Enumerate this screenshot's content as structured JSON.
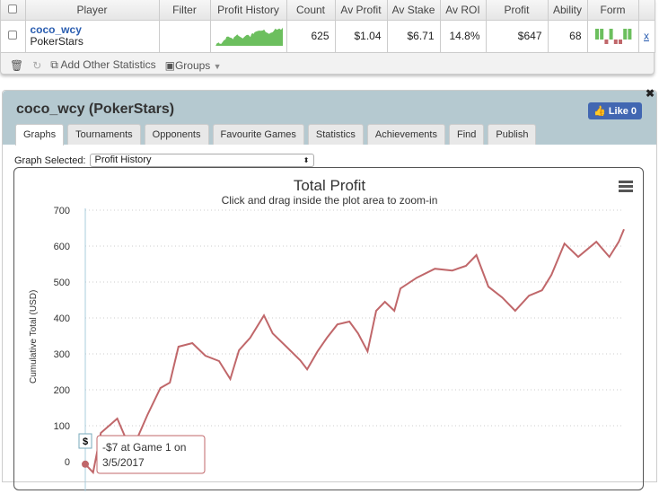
{
  "table": {
    "headers": [
      "Player",
      "Filter",
      "Profit History",
      "Count",
      "Av Profit",
      "Av Stake",
      "Av ROI",
      "Profit",
      "Ability",
      "Form"
    ],
    "row": {
      "player": "coco_wcy",
      "site": "PokerStars",
      "filter": "",
      "count": "625",
      "av_profit": "$1.04",
      "av_stake": "$6.71",
      "av_roi": "14.8%",
      "profit": "$647",
      "ability": "68",
      "remove": "x",
      "form": [
        "win",
        "win",
        "loss",
        "win",
        "loss",
        "loss",
        "win",
        "win"
      ]
    }
  },
  "toolbar": {
    "add_stats": "Add Other Statistics",
    "groups": "Groups"
  },
  "panel": {
    "title": "coco_wcy (PokerStars)",
    "like": "Like 0",
    "close": "✖",
    "tabs": [
      "Graphs",
      "Tournaments",
      "Opponents",
      "Favourite Games",
      "Statistics",
      "Achievements",
      "Find",
      "Publish"
    ],
    "graph_label": "Graph Selected:",
    "graph_value": "Profit History"
  },
  "chart_data": {
    "type": "line",
    "title": "Total Profit",
    "subtitle": "Click and drag inside the plot area to zoom-in",
    "ylabel": "Cumulative Total (USD)",
    "ylim": [
      0,
      700
    ],
    "yticks": [
      0,
      100,
      200,
      300,
      400,
      500,
      600,
      700
    ],
    "grid": true,
    "line_color": "#c0676a",
    "x": [
      1,
      10,
      19,
      38,
      47,
      62,
      73,
      88,
      99,
      109,
      125,
      140,
      156,
      169,
      179,
      192,
      208,
      218,
      234,
      250,
      258,
      270,
      281,
      293,
      307,
      317,
      328,
      338,
      348,
      359,
      366,
      385,
      406,
      426,
      442,
      454,
      468,
      484,
      499,
      515,
      530,
      541,
      556,
      572,
      593,
      608,
      619,
      625
    ],
    "y": [
      -7,
      -30,
      80,
      120,
      70,
      70,
      130,
      205,
      220,
      320,
      330,
      295,
      280,
      230,
      310,
      345,
      407,
      357,
      320,
      282,
      257,
      307,
      345,
      382,
      390,
      357,
      307,
      420,
      445,
      420,
      482,
      512,
      537,
      532,
      545,
      575,
      487,
      457,
      420,
      462,
      477,
      520,
      607,
      570,
      612,
      570,
      612,
      647
    ],
    "tooltip": {
      "marker": "$",
      "text1": "-$7 at Game 1 on",
      "text2": "3/5/2017"
    }
  }
}
